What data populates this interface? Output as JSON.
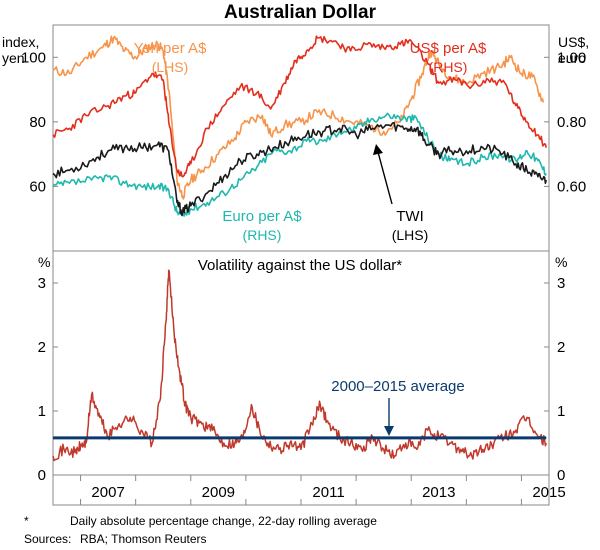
{
  "chart_data": [
    {
      "type": "line",
      "title": "Australian Dollar",
      "x_range": [
        2006.5,
        2015.5
      ],
      "x_ticks": [
        2007,
        2009,
        2011,
        2013,
        2015
      ],
      "x_tick_labels": [
        "2007",
        "2009",
        "2011",
        "2013",
        "2015"
      ],
      "left_axis": {
        "label_line1": "index,",
        "label_line2": "yen",
        "range": [
          40,
          110
        ],
        "ticks": [
          60,
          80,
          100
        ],
        "tick_labels": [
          "60",
          "80",
          "100"
        ]
      },
      "right_axis": {
        "label_line1": "US$,",
        "label_line2": "euro",
        "range": [
          0.4,
          1.1
        ],
        "ticks": [
          0.6,
          0.8,
          1.0
        ],
        "tick_labels": [
          "0.60",
          "0.80",
          "1.00"
        ]
      },
      "series": [
        {
          "name": "Yen per A$",
          "axis_note": "(LHS)",
          "axis": "left",
          "color": "#f7944a",
          "x": [
            2006.5,
            2006.8,
            2007.1,
            2007.4,
            2007.6,
            2007.8,
            2008.0,
            2008.2,
            2008.4,
            2008.5,
            2008.6,
            2008.75,
            2008.85,
            2009.0,
            2009.2,
            2009.5,
            2009.8,
            2010.0,
            2010.3,
            2010.45,
            2010.7,
            2011.0,
            2011.3,
            2011.6,
            2011.9,
            2012.2,
            2012.5,
            2012.8,
            2013.0,
            2013.2,
            2013.35,
            2013.5,
            2013.7,
            2014.0,
            2014.3,
            2014.6,
            2014.8,
            2015.0,
            2015.2,
            2015.4
          ],
          "values": [
            96,
            95,
            100,
            103,
            106,
            102,
            100,
            103,
            104,
            102,
            90,
            62,
            57,
            62,
            65,
            70,
            75,
            80,
            82,
            76,
            79,
            80,
            83,
            82,
            80,
            79,
            77,
            80,
            87,
            95,
            102,
            98,
            94,
            92,
            95,
            97,
            100,
            95,
            94,
            86
          ]
        },
        {
          "name": "US$ per A$",
          "axis_note": "(RHS)",
          "axis": "right",
          "color": "#e32e1e",
          "x": [
            2006.5,
            2006.8,
            2007.1,
            2007.5,
            2007.8,
            2008.0,
            2008.3,
            2008.5,
            2008.6,
            2008.75,
            2008.85,
            2009.0,
            2009.3,
            2009.6,
            2009.9,
            2010.2,
            2010.45,
            2010.7,
            2010.9,
            2011.1,
            2011.3,
            2011.6,
            2011.9,
            2012.2,
            2012.5,
            2012.8,
            2013.0,
            2013.3,
            2013.5,
            2013.8,
            2014.1,
            2014.4,
            2014.7,
            2014.9,
            2015.1,
            2015.3,
            2015.45
          ],
          "values": [
            0.76,
            0.78,
            0.82,
            0.85,
            0.88,
            0.89,
            0.95,
            0.93,
            0.8,
            0.65,
            0.63,
            0.67,
            0.78,
            0.85,
            0.91,
            0.89,
            0.84,
            0.92,
            0.99,
            1.02,
            1.06,
            1.05,
            1.02,
            1.04,
            1.03,
            1.04,
            1.05,
            0.98,
            0.92,
            0.93,
            0.91,
            0.93,
            0.92,
            0.85,
            0.8,
            0.76,
            0.72
          ]
        },
        {
          "name": "Euro per A$",
          "axis_note": "(RHS)",
          "axis": "right",
          "color": "#1fb8ae",
          "x": [
            2006.5,
            2006.8,
            2007.2,
            2007.5,
            2007.8,
            2008.1,
            2008.4,
            2008.6,
            2008.75,
            2008.85,
            2009.0,
            2009.3,
            2009.6,
            2009.9,
            2010.2,
            2010.5,
            2010.8,
            2011.1,
            2011.4,
            2011.7,
            2012.0,
            2012.3,
            2012.6,
            2012.9,
            2013.1,
            2013.3,
            2013.5,
            2013.7,
            2014.0,
            2014.3,
            2014.6,
            2014.9,
            2015.1,
            2015.3,
            2015.45
          ],
          "values": [
            0.6,
            0.61,
            0.62,
            0.63,
            0.61,
            0.6,
            0.6,
            0.59,
            0.52,
            0.51,
            0.53,
            0.55,
            0.58,
            0.62,
            0.66,
            0.71,
            0.71,
            0.74,
            0.74,
            0.77,
            0.78,
            0.81,
            0.82,
            0.81,
            0.81,
            0.75,
            0.7,
            0.68,
            0.67,
            0.69,
            0.7,
            0.68,
            0.71,
            0.68,
            0.64
          ]
        },
        {
          "name": "TWI",
          "axis_note": "(LHS)",
          "axis": "left",
          "color": "#1a1a1a",
          "x": [
            2006.5,
            2006.8,
            2007.2,
            2007.5,
            2007.8,
            2008.1,
            2008.4,
            2008.6,
            2008.75,
            2008.85,
            2009.0,
            2009.3,
            2009.6,
            2009.9,
            2010.2,
            2010.5,
            2010.8,
            2011.1,
            2011.4,
            2011.7,
            2012.0,
            2012.3,
            2012.6,
            2012.9,
            2013.1,
            2013.3,
            2013.5,
            2013.7,
            2014.0,
            2014.3,
            2014.6,
            2014.9,
            2015.1,
            2015.3,
            2015.45
          ],
          "values": [
            64,
            65,
            68,
            71,
            72,
            72,
            73,
            71,
            55,
            52,
            54,
            58,
            63,
            68,
            70,
            72,
            74,
            76,
            77,
            78,
            76,
            78,
            79,
            78,
            78,
            73,
            70,
            71,
            71,
            72,
            71,
            67,
            65,
            63,
            62
          ]
        }
      ]
    },
    {
      "type": "line",
      "title": "Volatility against the US dollar*",
      "x_range": [
        2006.5,
        2015.5
      ],
      "y_unit_left": "%",
      "y_unit_right": "%",
      "ylim": [
        0,
        3.5
      ],
      "y_ticks": [
        0,
        1,
        2,
        3
      ],
      "y_tick_labels": [
        "0",
        "1",
        "2",
        "3"
      ],
      "series": [
        {
          "name": "Volatility",
          "color": "#c0392b",
          "x": [
            2006.5,
            2006.7,
            2006.9,
            2007.0,
            2007.1,
            2007.2,
            2007.35,
            2007.5,
            2007.7,
            2007.9,
            2008.1,
            2008.3,
            2008.45,
            2008.55,
            2008.6,
            2008.7,
            2008.8,
            2008.9,
            2009.0,
            2009.2,
            2009.4,
            2009.6,
            2009.8,
            2009.95,
            2010.1,
            2010.25,
            2010.4,
            2010.6,
            2010.8,
            2011.0,
            2011.2,
            2011.35,
            2011.5,
            2011.7,
            2011.9,
            2012.1,
            2012.3,
            2012.5,
            2012.7,
            2012.9,
            2013.1,
            2013.3,
            2013.5,
            2013.7,
            2013.9,
            2014.1,
            2014.3,
            2014.5,
            2014.7,
            2014.9,
            2015.1,
            2015.3,
            2015.45
          ],
          "values": [
            0.3,
            0.4,
            0.35,
            0.45,
            0.5,
            1.25,
            0.9,
            0.6,
            0.8,
            0.9,
            0.7,
            0.5,
            1.2,
            2.4,
            3.2,
            2.2,
            1.6,
            1.1,
            0.9,
            0.8,
            0.7,
            0.5,
            0.5,
            0.6,
            1.1,
            0.7,
            0.5,
            0.4,
            0.5,
            0.4,
            0.8,
            1.1,
            0.8,
            0.6,
            0.5,
            0.4,
            0.6,
            0.4,
            0.3,
            0.5,
            0.4,
            0.7,
            0.6,
            0.5,
            0.4,
            0.3,
            0.4,
            0.5,
            0.6,
            0.7,
            0.9,
            0.6,
            0.5
          ]
        },
        {
          "name": "2000–2015 average",
          "color": "#0b3b6e",
          "constant_value": 0.58
        }
      ]
    }
  ],
  "footnote": {
    "marker": "*",
    "text": "Daily absolute percentage change, 22-day rolling average"
  },
  "sources": {
    "label": "Sources:",
    "text": "RBA; Thomson Reuters"
  }
}
